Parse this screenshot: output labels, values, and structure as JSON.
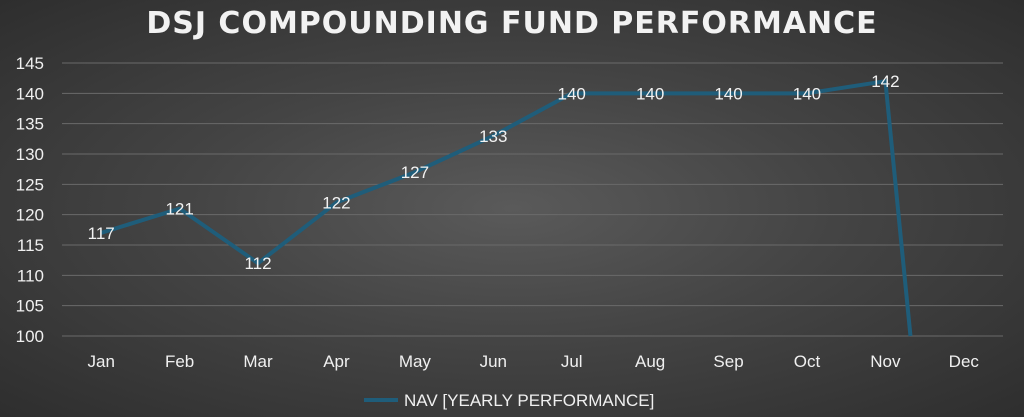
{
  "chart_data": {
    "type": "line",
    "title": "DSJ COMPOUNDING FUND PERFORMANCE",
    "categories": [
      "Jan",
      "Feb",
      "Mar",
      "Apr",
      "May",
      "Jun",
      "Jul",
      "Aug",
      "Sep",
      "Oct",
      "Nov",
      "Dec"
    ],
    "series": [
      {
        "name": "NAV [YEARLY PERFORMANCE]",
        "values": [
          117,
          121,
          112,
          122,
          127,
          133,
          140,
          140,
          140,
          140,
          142,
          null
        ],
        "data_labels": [
          "117",
          "121",
          "112",
          "122",
          "127",
          "133",
          "140",
          "140",
          "140",
          "140",
          "142",
          ""
        ],
        "color": "#1f5d7a"
      }
    ],
    "drop_to_axis_after": "Nov",
    "ylim": [
      100,
      145
    ],
    "yticks": [
      "100",
      "105",
      "110",
      "115",
      "120",
      "125",
      "130",
      "135",
      "140",
      "145"
    ],
    "xlabel": "",
    "ylabel": "",
    "grid": true,
    "legend": "bottom"
  },
  "colors": {
    "line": "#1f5d7a",
    "text": "#f2f2f2",
    "grid": "#6a6a6a"
  }
}
